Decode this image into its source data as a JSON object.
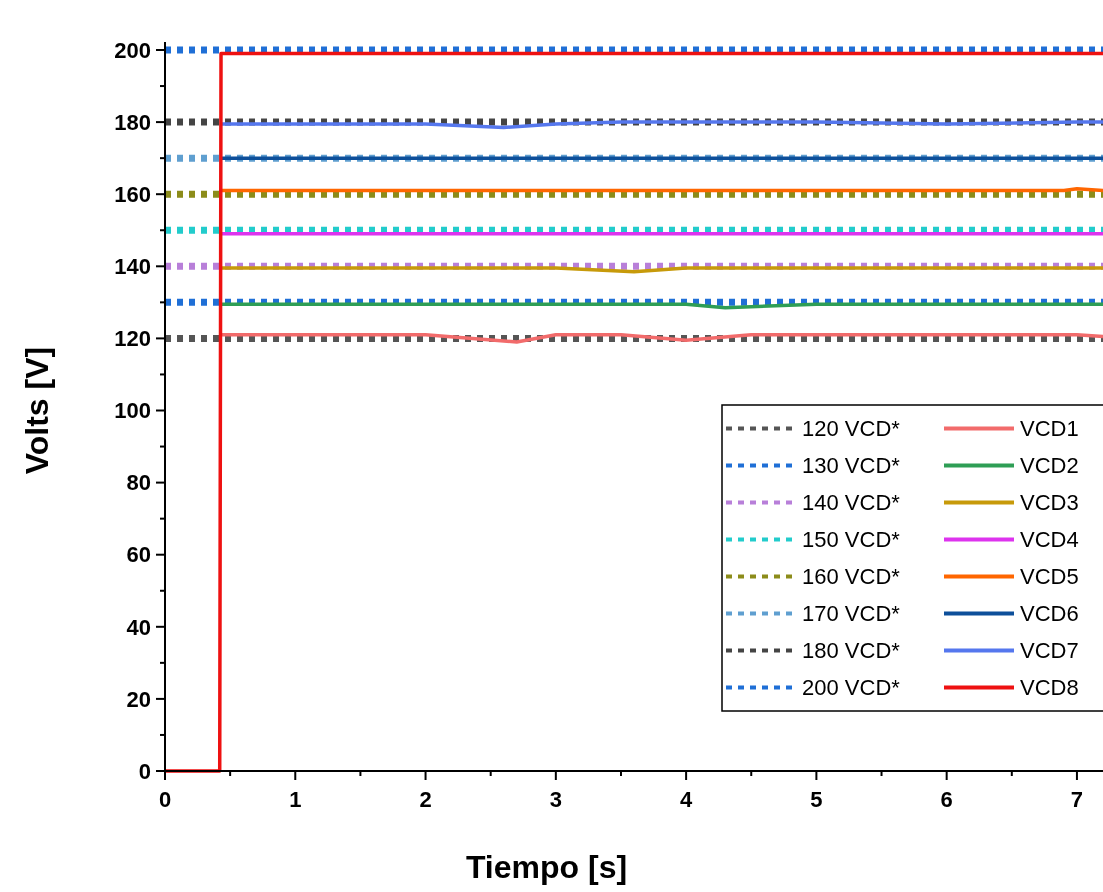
{
  "chart_data": {
    "type": "line",
    "xlabel": "Tiempo [s]",
    "ylabel": "Volts [V]",
    "xlim": [
      0,
      7.2
    ],
    "ylim": [
      0,
      200
    ],
    "xticks": [
      0,
      {
        "value": 0.5,
        "label": null
      },
      1,
      {
        "value": 1.5,
        "label": null
      },
      2,
      {
        "value": 2.5,
        "label": null
      },
      3,
      {
        "value": 3.5,
        "label": null
      },
      4,
      {
        "value": 4.5,
        "label": null
      },
      5,
      {
        "value": 5.5,
        "label": null
      },
      6,
      {
        "value": 6.5,
        "label": null
      },
      7
    ],
    "yticks": [
      0,
      {
        "value": 10,
        "label": null
      },
      20,
      {
        "value": 30,
        "label": null
      },
      40,
      {
        "value": 50,
        "label": null
      },
      60,
      {
        "value": 70,
        "label": null
      },
      80,
      {
        "value": 90,
        "label": null
      },
      100,
      {
        "value": 110,
        "label": null
      },
      120,
      {
        "value": 130,
        "label": null
      },
      140,
      {
        "value": 150,
        "label": null
      },
      160,
      {
        "value": 170,
        "label": null
      },
      180,
      {
        "value": 190,
        "label": null
      },
      200
    ],
    "grid": false,
    "legend": "bottom right",
    "series": [
      {
        "name": "120 VCD*",
        "color": "#555555",
        "line_style": "dashed",
        "x": [
          0,
          7.2
        ],
        "values": [
          120,
          120
        ]
      },
      {
        "name": "130 VCD*",
        "color": "#1f6fd6",
        "line_style": "dashed",
        "x": [
          0,
          7.2
        ],
        "values": [
          130,
          130
        ]
      },
      {
        "name": "140 VCD*",
        "color": "#b87fd9",
        "line_style": "dashed",
        "x": [
          0,
          7.2
        ],
        "values": [
          140,
          140
        ]
      },
      {
        "name": "150 VCD*",
        "color": "#22cccc",
        "line_style": "dashed",
        "x": [
          0,
          7.2
        ],
        "values": [
          150,
          150
        ]
      },
      {
        "name": "160 VCD*",
        "color": "#8c8c1a",
        "line_style": "dashed",
        "x": [
          0,
          7.2
        ],
        "values": [
          160,
          160
        ]
      },
      {
        "name": "170 VCD*",
        "color": "#5f9fd0",
        "line_style": "dashed",
        "x": [
          0,
          7.2
        ],
        "values": [
          170,
          170
        ]
      },
      {
        "name": "180 VCD*",
        "color": "#444444",
        "line_style": "dashed",
        "x": [
          0,
          7.2
        ],
        "values": [
          180,
          180
        ]
      },
      {
        "name": "200 VCD*",
        "color": "#1f6fd6",
        "line_style": "dashed",
        "x": [
          0,
          7.2
        ],
        "values": [
          200,
          200
        ]
      },
      {
        "name": "VCD1",
        "color": "#f26b6b",
        "line_style": "solid",
        "x": [
          0.43,
          1,
          1.5,
          2,
          2.7,
          3,
          3.5,
          4,
          4.5,
          5,
          5.5,
          6,
          6.5,
          7,
          7.2
        ],
        "values": [
          121,
          121,
          121,
          121,
          119,
          121,
          121,
          119.5,
          121,
          121,
          121,
          121,
          121,
          121,
          120.5
        ]
      },
      {
        "name": "VCD2",
        "color": "#2e9e55",
        "line_style": "solid",
        "x": [
          0.43,
          1,
          2,
          3,
          4,
          4.3,
          5,
          6,
          7,
          7.2
        ],
        "values": [
          129.5,
          129.5,
          129.5,
          129.5,
          129.5,
          128.5,
          129.5,
          129.5,
          129.5,
          129.5
        ]
      },
      {
        "name": "VCD3",
        "color": "#c79a0a",
        "line_style": "solid",
        "x": [
          0.43,
          1,
          2,
          3,
          3.6,
          4,
          5,
          6,
          7,
          7.2
        ],
        "values": [
          139.5,
          139.5,
          139.5,
          139.5,
          138.5,
          139.5,
          139.5,
          139.5,
          139.5,
          139.5
        ]
      },
      {
        "name": "VCD4",
        "color": "#dd33ee",
        "line_style": "solid",
        "x": [
          0.43,
          1,
          2,
          3,
          4,
          5,
          6,
          7,
          7.2
        ],
        "values": [
          149,
          149,
          149,
          149,
          149,
          149,
          149,
          149,
          149
        ]
      },
      {
        "name": "VCD5",
        "color": "#ff6600",
        "line_style": "solid",
        "x": [
          0.43,
          1,
          2,
          3,
          4,
          5,
          6,
          6.9,
          7,
          7.2
        ],
        "values": [
          161,
          161,
          161,
          161,
          161,
          161,
          161,
          161,
          161.5,
          161
        ]
      },
      {
        "name": "VCD6",
        "color": "#0d4f9a",
        "line_style": "solid",
        "x": [
          0.43,
          1,
          2,
          3,
          4,
          5,
          6,
          7,
          7.2
        ],
        "values": [
          170,
          170,
          170,
          170,
          170,
          170,
          170,
          170,
          170
        ]
      },
      {
        "name": "VCD7",
        "color": "#5577ee",
        "line_style": "solid",
        "x": [
          0.43,
          1,
          2,
          2.6,
          3,
          3.5,
          4,
          5,
          6,
          7,
          7.2
        ],
        "values": [
          179.5,
          179.5,
          179.5,
          178.5,
          179.5,
          180,
          180,
          180,
          179.5,
          180,
          180
        ]
      },
      {
        "name": "VCD8",
        "color": "#ee1111",
        "line_style": "solid",
        "x": [
          0,
          0.42,
          0.43,
          1,
          2,
          3,
          4,
          5,
          6,
          7,
          7.2
        ],
        "values": [
          0,
          0,
          199,
          199,
          199,
          199,
          199,
          199,
          199,
          199,
          199
        ]
      }
    ]
  }
}
